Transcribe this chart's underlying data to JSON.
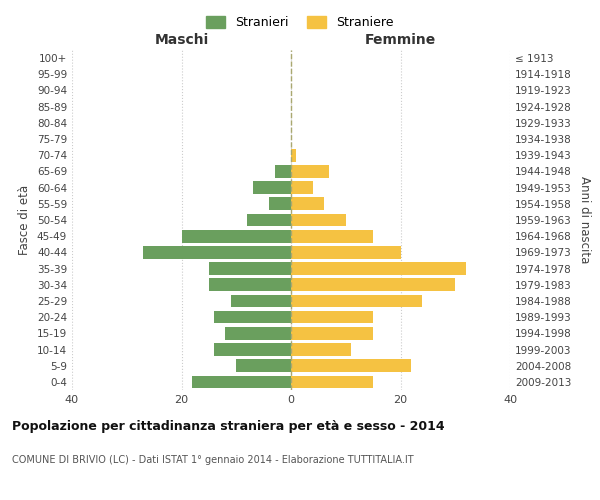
{
  "age_groups": [
    "0-4",
    "5-9",
    "10-14",
    "15-19",
    "20-24",
    "25-29",
    "30-34",
    "35-39",
    "40-44",
    "45-49",
    "50-54",
    "55-59",
    "60-64",
    "65-69",
    "70-74",
    "75-79",
    "80-84",
    "85-89",
    "90-94",
    "95-99",
    "100+"
  ],
  "birth_years": [
    "2009-2013",
    "2004-2008",
    "1999-2003",
    "1994-1998",
    "1989-1993",
    "1984-1988",
    "1979-1983",
    "1974-1978",
    "1969-1973",
    "1964-1968",
    "1959-1963",
    "1954-1958",
    "1949-1953",
    "1944-1948",
    "1939-1943",
    "1934-1938",
    "1929-1933",
    "1924-1928",
    "1919-1923",
    "1914-1918",
    "≤ 1913"
  ],
  "males": [
    18,
    10,
    14,
    12,
    14,
    11,
    15,
    15,
    27,
    20,
    8,
    4,
    7,
    3,
    0,
    0,
    0,
    0,
    0,
    0,
    0
  ],
  "females": [
    15,
    22,
    11,
    15,
    15,
    24,
    30,
    32,
    20,
    15,
    10,
    6,
    4,
    7,
    1,
    0,
    0,
    0,
    0,
    0,
    0
  ],
  "male_color": "#6a9f5e",
  "female_color": "#f5c242",
  "background_color": "#ffffff",
  "grid_color": "#cccccc",
  "title": "Popolazione per cittadinanza straniera per età e sesso - 2014",
  "subtitle": "COMUNE DI BRIVIO (LC) - Dati ISTAT 1° gennaio 2014 - Elaborazione TUTTITALIA.IT",
  "xlabel_left": "Maschi",
  "xlabel_right": "Femmine",
  "ylabel_left": "Fasce di età",
  "ylabel_right": "Anni di nascita",
  "legend_male": "Stranieri",
  "legend_female": "Straniere",
  "xlim": 40,
  "center_line_color": "#aaa870"
}
